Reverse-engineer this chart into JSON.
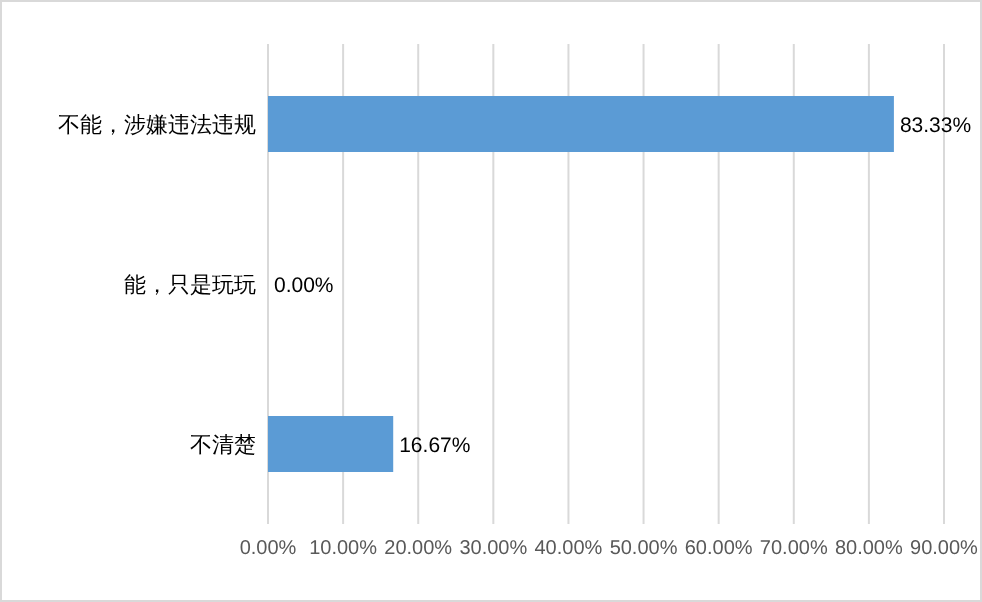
{
  "chart_data": {
    "type": "bar",
    "orientation": "horizontal",
    "categories": [
      "不能，涉嫌违法违规",
      "能，只是玩玩",
      "不清楚"
    ],
    "values": [
      83.33,
      0,
      16.67
    ],
    "value_labels": [
      "83.33%",
      "0.00%",
      "16.67%"
    ],
    "color": "#5b9bd5",
    "xlim": [
      0,
      90
    ],
    "xticks": [
      {
        "value": 0,
        "label": "0.00%"
      },
      {
        "value": 10,
        "label": "10.00%"
      },
      {
        "value": 20,
        "label": "20.00%"
      },
      {
        "value": 30,
        "label": "30.00%"
      },
      {
        "value": 40,
        "label": "40.00%"
      },
      {
        "value": 50,
        "label": "50.00%"
      },
      {
        "value": 60,
        "label": "60.00%"
      },
      {
        "value": 70,
        "label": "70.00%"
      },
      {
        "value": 80,
        "label": "80.00%"
      },
      {
        "value": 90,
        "label": "90.00%"
      }
    ],
    "grid": "x"
  }
}
